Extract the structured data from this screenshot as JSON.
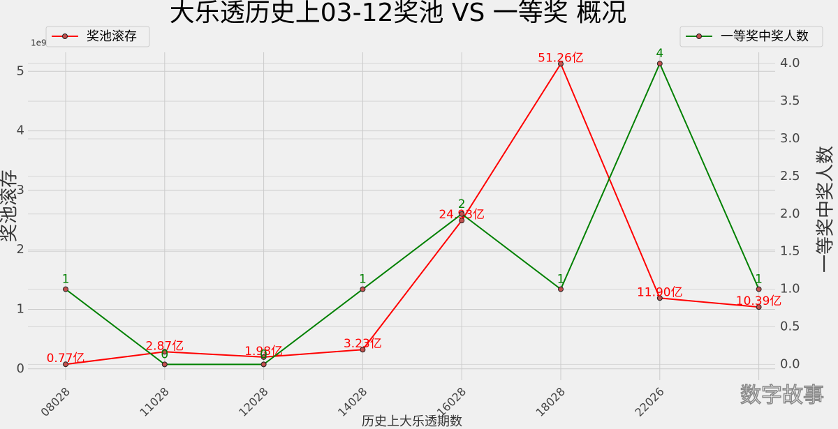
{
  "chart_data": {
    "type": "line",
    "title": "大乐透历史上03-12奖池 VS 一等奖 概况",
    "xlabel": "历史上大乐透期数",
    "ylabel": "奖池滚存",
    "y2label": "一等奖中奖人数",
    "y_offset_text": "1e9",
    "watermark": "数字故事",
    "categories": [
      "08028",
      "11028",
      "12028",
      "14028",
      "16028",
      "18028",
      "22026",
      null
    ],
    "series": [
      {
        "name": "奖池滚存",
        "color": "#ff0000",
        "axis": "y",
        "values": [
          77000000,
          287000000,
          198000000,
          323000000,
          2493000000,
          5126000000,
          1190000000,
          1039000000
        ],
        "value_labels": [
          "0.77亿",
          "2.87亿",
          "1.98亿",
          "3.23亿",
          "24.93亿",
          "51.26亿",
          "11.90亿",
          "10.39亿"
        ]
      },
      {
        "name": "一等奖中奖人数",
        "color": "#008000",
        "axis": "y2",
        "values": [
          1,
          0,
          0,
          1,
          2,
          1,
          4,
          1
        ]
      }
    ],
    "ylim": [
      -190000000,
      5320000000
    ],
    "yticks": [
      {
        "value": 0,
        "label": "0"
      },
      {
        "value": 1000000000,
        "label": "1"
      },
      {
        "value": 2000000000,
        "label": "2"
      },
      {
        "value": 3000000000,
        "label": "3"
      },
      {
        "value": 4000000000,
        "label": "4"
      },
      {
        "value": 5000000000,
        "label": "5"
      }
    ],
    "y2lim": [
      -0.21,
      4.15
    ],
    "y2ticks": [
      {
        "value": 0,
        "label": "0.0"
      },
      {
        "value": 0.5,
        "label": "0.5"
      },
      {
        "value": 1,
        "label": "1.0"
      },
      {
        "value": 1.5,
        "label": "1.5"
      },
      {
        "value": 2,
        "label": "2.0"
      },
      {
        "value": 2.5,
        "label": "2.5"
      },
      {
        "value": 3,
        "label": "3.0"
      },
      {
        "value": 3.5,
        "label": "3.5"
      },
      {
        "value": 4,
        "label": "4.0"
      }
    ],
    "grid": true
  }
}
